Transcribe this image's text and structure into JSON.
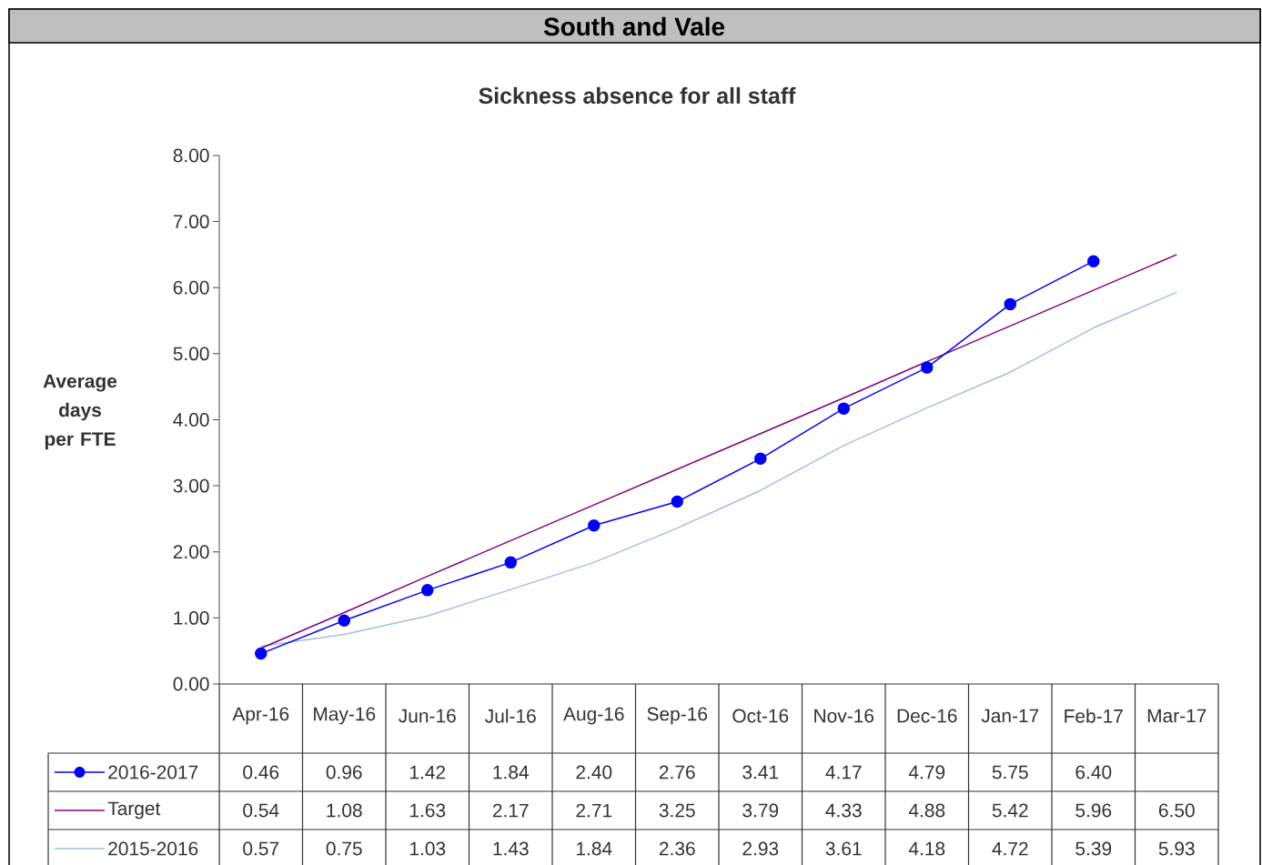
{
  "chart_data": {
    "type": "line",
    "title": "South and Vale",
    "subtitle": "Sickness absence for all staff",
    "ylabel": "Average days per FTE",
    "categories": [
      "Apr-16",
      "May-16",
      "Jun-16",
      "Jul-16",
      "Aug-16",
      "Sep-16",
      "Oct-16",
      "Nov-16",
      "Dec-16",
      "Jan-17",
      "Feb-17",
      "Mar-17"
    ],
    "series": [
      {
        "name": "2016-2017",
        "color": "#0000ff",
        "marker": "circle",
        "values": [
          0.46,
          0.96,
          1.42,
          1.84,
          2.4,
          2.76,
          3.41,
          4.17,
          4.79,
          5.75,
          6.4,
          null
        ],
        "value_labels": [
          "0.46",
          "0.96",
          "1.42",
          "1.84",
          "2.40",
          "2.76",
          "3.41",
          "4.17",
          "4.79",
          "5.75",
          "6.40",
          null
        ]
      },
      {
        "name": "Target",
        "color": "#800080",
        "marker": "none",
        "values": [
          0.54,
          1.08,
          1.63,
          2.17,
          2.71,
          3.25,
          3.79,
          4.33,
          4.88,
          5.42,
          5.96,
          6.5
        ],
        "value_labels": [
          "0.54",
          "1.08",
          "1.63",
          "2.17",
          "2.71",
          "3.25",
          "3.79",
          "4.33",
          "4.88",
          "5.42",
          "5.96",
          "6.50"
        ]
      },
      {
        "name": "2015-2016",
        "color": "#a6bfdf",
        "marker": "none",
        "values": [
          0.57,
          0.75,
          1.03,
          1.43,
          1.84,
          2.36,
          2.93,
          3.61,
          4.18,
          4.72,
          5.39,
          5.93
        ],
        "value_labels": [
          "0.57",
          "0.75",
          "1.03",
          "1.43",
          "1.84",
          "2.36",
          "2.93",
          "3.61",
          "4.18",
          "4.72",
          "5.39",
          "5.93"
        ]
      }
    ],
    "ylim": [
      0,
      8
    ],
    "yticks": [
      {
        "value": 0,
        "label": "0.00"
      },
      {
        "value": 1,
        "label": "1.00"
      },
      {
        "value": 2,
        "label": "2.00"
      },
      {
        "value": 3,
        "label": "3.00"
      },
      {
        "value": 4,
        "label": "4.00"
      },
      {
        "value": 5,
        "label": "5.00"
      },
      {
        "value": 6,
        "label": "6.00"
      },
      {
        "value": 7,
        "label": "7.00"
      },
      {
        "value": 8,
        "label": "8.00"
      }
    ],
    "legend": "bottom"
  }
}
